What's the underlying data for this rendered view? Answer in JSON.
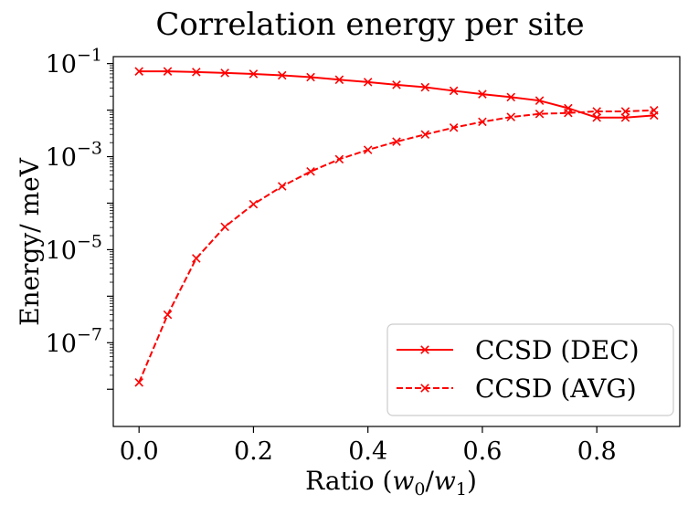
{
  "chart_data": {
    "type": "line",
    "title": "Correlation energy per site",
    "xlabel": "Ratio (w0/w1)",
    "xlabel_prefix": "Ratio (",
    "xlabel_w0": "w",
    "xlabel_sub0": "0",
    "xlabel_slash": "/",
    "xlabel_w1": "w",
    "xlabel_sub1": "1",
    "xlabel_suffix": ")",
    "ylabel": "Energy/ meV",
    "yscale": "log",
    "xlim": [
      -0.045,
      0.945
    ],
    "ylim_exp": [
      -8.8,
      -0.85
    ],
    "xticks": [
      0.0,
      0.2,
      0.4,
      0.6,
      0.8
    ],
    "xtick_labels": [
      "0.0",
      "0.2",
      "0.4",
      "0.6",
      "0.8"
    ],
    "yticks_exp": [
      -1,
      -3,
      -5,
      -7
    ],
    "ytick_base": "10",
    "ytick_exponents": [
      "−1",
      "−3",
      "−5",
      "−7"
    ],
    "x": [
      0.0,
      0.05,
      0.1,
      0.15,
      0.2,
      0.25,
      0.3,
      0.35,
      0.4,
      0.45,
      0.5,
      0.55,
      0.6,
      0.65,
      0.7,
      0.75,
      0.8,
      0.85,
      0.9
    ],
    "series": [
      {
        "name": "CCSD (DEC)",
        "linestyle": "solid",
        "marker": "x",
        "color": "#ff0000",
        "values": [
          0.068,
          0.068,
          0.066,
          0.063,
          0.06,
          0.056,
          0.051,
          0.045,
          0.04,
          0.035,
          0.031,
          0.026,
          0.022,
          0.019,
          0.016,
          0.011,
          0.0069,
          0.0069,
          0.0077
        ]
      },
      {
        "name": "CCSD (AVG)",
        "linestyle": "dashed",
        "marker": "x",
        "color": "#ff0000",
        "values": [
          1.4e-08,
          4e-07,
          6.5e-06,
          3.1e-05,
          9.5e-05,
          0.00023,
          0.00048,
          0.00088,
          0.0014,
          0.0021,
          0.003,
          0.0042,
          0.0056,
          0.0071,
          0.0083,
          0.0087,
          0.0094,
          0.0094,
          0.0099
        ]
      }
    ],
    "legend_location": "lower right"
  }
}
